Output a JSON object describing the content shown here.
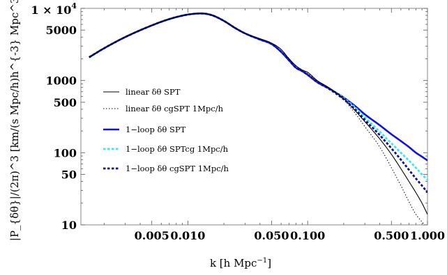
{
  "chart_data": {
    "type": "line",
    "xscale": "log",
    "yscale": "log",
    "xlim": [
      0.00128,
      1.0
    ],
    "ylim": [
      10,
      10000
    ],
    "xlabel_main": "k [h Mpc",
    "xlabel_sup": "−1",
    "xlabel_end": "]",
    "ylabel": "|P_{δθ}|/(2π)^3 [km/(s Mpc/h)h^{-3} Mpc^3]",
    "x_ticks": [
      {
        "value": 0.005,
        "label": "0.005"
      },
      {
        "value": 0.01,
        "label": "0.010"
      },
      {
        "value": 0.05,
        "label": "0.050"
      },
      {
        "value": 0.1,
        "label": "0.100"
      },
      {
        "value": 0.5,
        "label": "0.500"
      },
      {
        "value": 1.0,
        "label": "1.000"
      }
    ],
    "y_ticks": [
      {
        "value": 10000,
        "label_main": "1 × 10",
        "label_sup": "4"
      },
      {
        "value": 5000,
        "label_main": "5000",
        "label_sup": ""
      },
      {
        "value": 1000,
        "label_main": "1000",
        "label_sup": ""
      },
      {
        "value": 500,
        "label_main": "500",
        "label_sup": ""
      },
      {
        "value": 100,
        "label_main": "100",
        "label_sup": ""
      },
      {
        "value": 50,
        "label_main": "50",
        "label_sup": ""
      },
      {
        "value": 10,
        "label_main": "10",
        "label_sup": ""
      }
    ],
    "legend_position": "center-left",
    "series": [
      {
        "name": "linear δθ SPT",
        "color": "#000000",
        "style": "solid",
        "x": [
          0.0015,
          0.002,
          0.003,
          0.005,
          0.007,
          0.01,
          0.013,
          0.016,
          0.02,
          0.025,
          0.03,
          0.04,
          0.05,
          0.06,
          0.07,
          0.08,
          0.09,
          0.1,
          0.12,
          0.15,
          0.2,
          0.25,
          0.3,
          0.4,
          0.5,
          0.6,
          0.7,
          0.8,
          0.9,
          1.0
        ],
        "y": [
          2100,
          2800,
          4000,
          5800,
          7100,
          8200,
          8500,
          8000,
          6700,
          5300,
          4500,
          3800,
          3300,
          2700,
          2000,
          1600,
          1400,
          1300,
          1000,
          800,
          560,
          380,
          270,
          155,
          95,
          60,
          40,
          28,
          20,
          14
        ]
      },
      {
        "name": "linear δθ cgSPT 1Mpc/h",
        "color": "#000000",
        "style": "dotted",
        "x": [
          0.0015,
          0.002,
          0.003,
          0.005,
          0.007,
          0.01,
          0.013,
          0.016,
          0.02,
          0.025,
          0.03,
          0.04,
          0.05,
          0.06,
          0.07,
          0.08,
          0.09,
          0.1,
          0.12,
          0.15,
          0.2,
          0.25,
          0.3,
          0.4,
          0.5,
          0.6,
          0.7,
          0.8,
          0.9,
          1.0
        ],
        "y": [
          2100,
          2800,
          4000,
          5800,
          7100,
          8200,
          8500,
          8000,
          6700,
          5300,
          4500,
          3800,
          3300,
          2700,
          2000,
          1600,
          1400,
          1250,
          990,
          780,
          540,
          350,
          230,
          120,
          62,
          35,
          21,
          14,
          11,
          9
        ]
      },
      {
        "name": "1−loop δθ SPT",
        "color": "#1010ee",
        "style": "thick",
        "x": [
          0.0015,
          0.002,
          0.003,
          0.005,
          0.007,
          0.01,
          0.013,
          0.016,
          0.02,
          0.025,
          0.03,
          0.04,
          0.05,
          0.06,
          0.07,
          0.08,
          0.09,
          0.1,
          0.12,
          0.15,
          0.2,
          0.25,
          0.3,
          0.4,
          0.5,
          0.6,
          0.7,
          0.8,
          0.9,
          1.0
        ],
        "y": [
          2100,
          2800,
          4000,
          5800,
          7100,
          8200,
          8500,
          8000,
          6700,
          5300,
          4500,
          3700,
          3200,
          2500,
          1900,
          1500,
          1350,
          1200,
          950,
          780,
          580,
          440,
          340,
          240,
          180,
          145,
          120,
          100,
          88,
          78
        ]
      },
      {
        "name": "1−loop δθ SPTcg 1Mpc/h",
        "color": "#33e8f5",
        "style": "dashed",
        "x": [
          0.0015,
          0.002,
          0.003,
          0.005,
          0.007,
          0.01,
          0.013,
          0.016,
          0.02,
          0.025,
          0.03,
          0.04,
          0.05,
          0.06,
          0.07,
          0.08,
          0.09,
          0.1,
          0.12,
          0.15,
          0.2,
          0.25,
          0.3,
          0.4,
          0.5,
          0.6,
          0.7,
          0.8,
          0.9,
          1.0
        ],
        "y": [
          2100,
          2800,
          4000,
          5800,
          7100,
          8200,
          8500,
          8000,
          6700,
          5300,
          4500,
          3700,
          3200,
          2500,
          1900,
          1500,
          1350,
          1200,
          950,
          780,
          570,
          420,
          310,
          195,
          135,
          100,
          78,
          62,
          50,
          42
        ]
      },
      {
        "name": "1−loop δθ cgSPT 1Mpc/h",
        "color": "#0a0aa8",
        "style": "dashed",
        "x": [
          0.0015,
          0.002,
          0.003,
          0.005,
          0.007,
          0.01,
          0.013,
          0.016,
          0.02,
          0.025,
          0.03,
          0.04,
          0.05,
          0.06,
          0.07,
          0.08,
          0.09,
          0.1,
          0.12,
          0.15,
          0.2,
          0.25,
          0.3,
          0.4,
          0.5,
          0.6,
          0.7,
          0.8,
          0.9,
          1.0
        ],
        "y": [
          2100,
          2800,
          4000,
          5800,
          7100,
          8200,
          8500,
          8000,
          6700,
          5300,
          4500,
          3700,
          3200,
          2500,
          1900,
          1500,
          1350,
          1200,
          950,
          770,
          550,
          395,
          285,
          175,
          115,
          80,
          58,
          44,
          35,
          28
        ]
      }
    ]
  }
}
